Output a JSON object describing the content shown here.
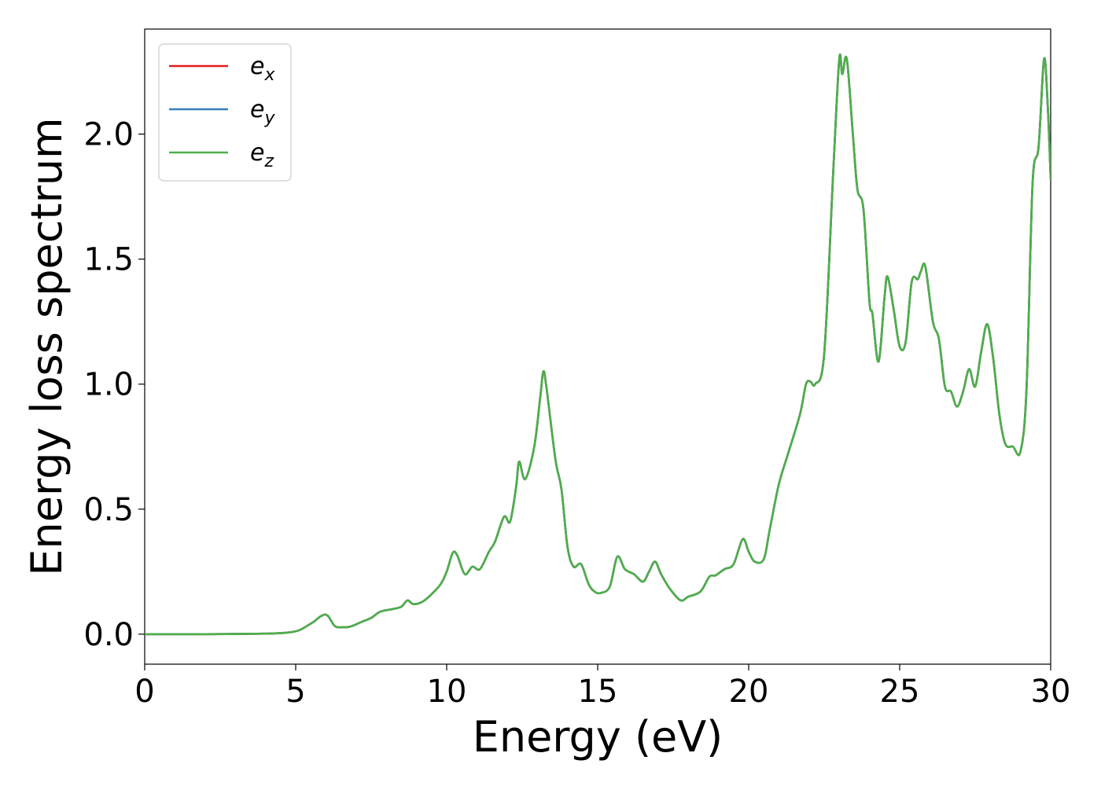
{
  "chart_data": {
    "type": "line",
    "xlabel": "Energy (eV)",
    "ylabel": "Energy loss spectrum",
    "xlim": [
      0,
      30
    ],
    "ylim": [
      -0.12,
      2.42
    ],
    "xticks": [
      0,
      5,
      10,
      15,
      20,
      25,
      30
    ],
    "xtick_labels": [
      "0",
      "5",
      "10",
      "15",
      "20",
      "25",
      "30"
    ],
    "yticks": [
      0.0,
      0.5,
      1.0,
      1.5,
      2.0
    ],
    "ytick_labels": [
      "0.0",
      "0.5",
      "1.0",
      "1.5",
      "2.0"
    ],
    "grid": false,
    "legend_position": "upper-left",
    "series": [
      {
        "name": "e",
        "subscript": "x",
        "color": "#e41a1c",
        "values_ref": "x_y"
      },
      {
        "name": "e",
        "subscript": "y",
        "color": "#377eb8",
        "values_ref": "x_y"
      },
      {
        "name": "e",
        "subscript": "z",
        "color": "#4daf4a",
        "values_ref": "x_y"
      }
    ],
    "x": [
      0,
      2,
      4,
      4.7,
      5.1,
      5.4,
      5.6,
      5.85,
      6.05,
      6.3,
      6.55,
      6.8,
      7.2,
      7.5,
      7.8,
      8.2,
      8.5,
      8.7,
      8.9,
      9.2,
      9.5,
      9.8,
      10.0,
      10.2,
      10.35,
      10.6,
      10.85,
      11.1,
      11.4,
      11.6,
      11.9,
      12.1,
      12.3,
      12.4,
      12.6,
      12.9,
      13.1,
      13.2,
      13.3,
      13.6,
      13.8,
      14.0,
      14.2,
      14.45,
      14.7,
      14.9,
      15.1,
      15.4,
      15.65,
      15.9,
      16.2,
      16.5,
      16.7,
      16.9,
      17.1,
      17.4,
      17.75,
      18.0,
      18.4,
      18.7,
      18.9,
      19.2,
      19.5,
      19.8,
      20.0,
      20.2,
      20.5,
      20.7,
      21.0,
      21.3,
      21.7,
      21.9,
      22.05,
      22.2,
      22.5,
      22.8,
      23.0,
      23.1,
      23.25,
      23.45,
      23.6,
      23.8,
      24.0,
      24.1,
      24.3,
      24.5,
      24.6,
      24.8,
      25.0,
      25.2,
      25.4,
      25.6,
      25.7,
      25.85,
      26.1,
      26.3,
      26.5,
      26.7,
      26.9,
      27.1,
      27.3,
      27.5,
      27.7,
      27.9,
      28.1,
      28.3,
      28.5,
      28.75,
      29.0,
      29.2,
      29.4,
      29.6,
      29.78,
      29.9,
      30.0
    ],
    "x_y": [
      0.0,
      0.0,
      0.002,
      0.006,
      0.015,
      0.035,
      0.05,
      0.073,
      0.075,
      0.032,
      0.028,
      0.03,
      0.05,
      0.065,
      0.09,
      0.1,
      0.11,
      0.135,
      0.12,
      0.13,
      0.16,
      0.2,
      0.25,
      0.325,
      0.315,
      0.24,
      0.27,
      0.26,
      0.33,
      0.37,
      0.47,
      0.45,
      0.59,
      0.69,
      0.62,
      0.75,
      0.95,
      1.05,
      0.99,
      0.7,
      0.58,
      0.35,
      0.27,
      0.28,
      0.2,
      0.17,
      0.165,
      0.19,
      0.31,
      0.26,
      0.24,
      0.21,
      0.25,
      0.29,
      0.24,
      0.18,
      0.135,
      0.15,
      0.17,
      0.23,
      0.235,
      0.26,
      0.28,
      0.38,
      0.33,
      0.29,
      0.3,
      0.42,
      0.6,
      0.72,
      0.88,
      1.0,
      1.01,
      1.0,
      1.12,
      1.85,
      2.3,
      2.24,
      2.3,
      2.0,
      1.78,
      1.7,
      1.33,
      1.28,
      1.09,
      1.35,
      1.43,
      1.3,
      1.15,
      1.17,
      1.41,
      1.42,
      1.45,
      1.47,
      1.25,
      1.18,
      0.99,
      0.97,
      0.91,
      0.97,
      1.06,
      0.99,
      1.13,
      1.24,
      1.1,
      0.88,
      0.76,
      0.75,
      0.73,
      0.98,
      1.8,
      1.95,
      2.3,
      2.12,
      1.82
    ]
  }
}
